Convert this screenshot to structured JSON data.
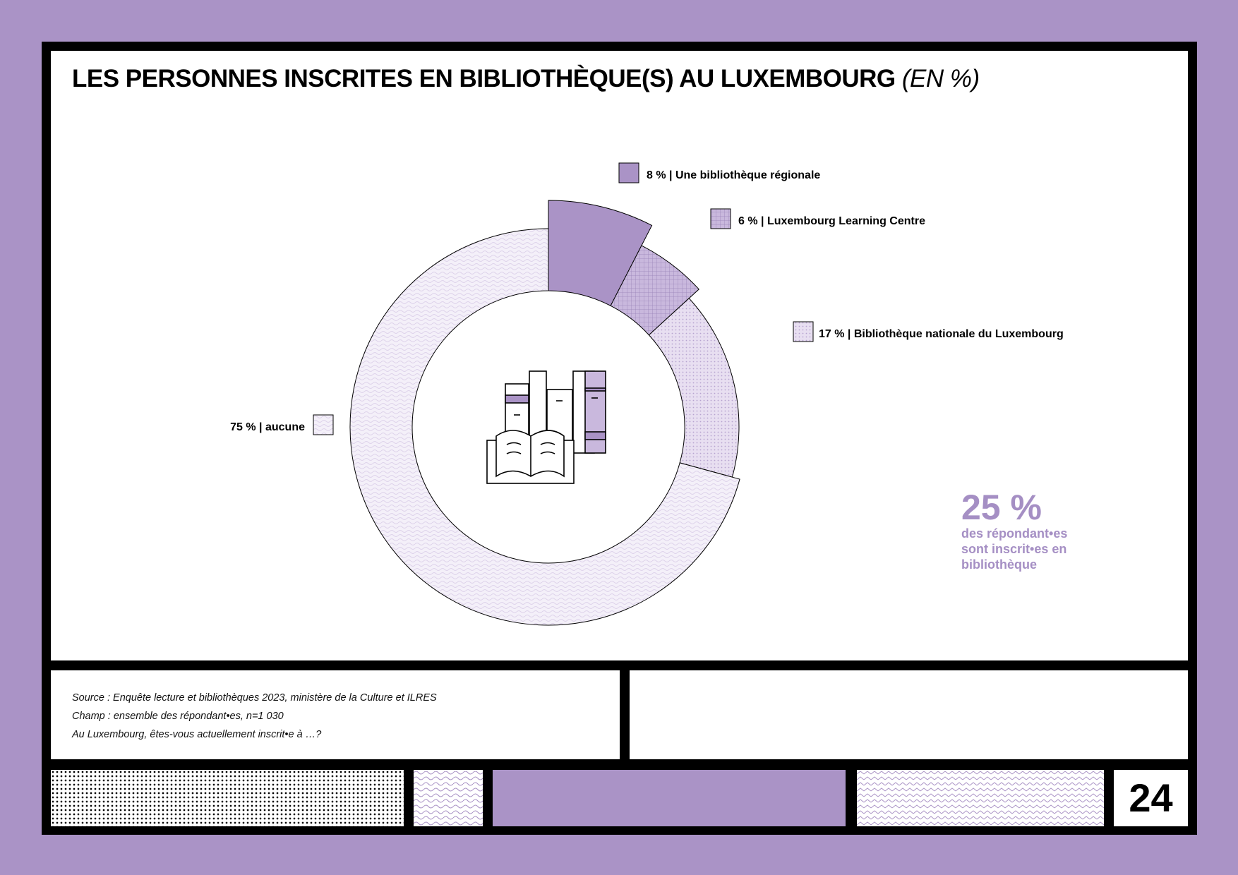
{
  "header": {
    "title": "LES PERSONNES INSCRITES EN BIBLIOTHÈQUE(S) AU LUXEMBOURG",
    "unit": "(EN %)"
  },
  "chart_data": {
    "type": "pie",
    "donut": true,
    "slices": [
      {
        "label": "8 % | Une bibliothèque régionale",
        "value": 8,
        "fill": "solid",
        "color": "#aa93c6"
      },
      {
        "label": "6 % | Luxembourg Learning Centre",
        "value": 6,
        "fill": "grid",
        "color": "#c9b8dd"
      },
      {
        "label": "17 % | Bibliothèque nationale du Luxembourg",
        "value": 17,
        "fill": "dots",
        "color": "#e8dff1"
      },
      {
        "label": "75 % | aucune",
        "value": 75,
        "fill": "waves",
        "color": "#f4f0f9"
      }
    ],
    "center_icon": "books-icon"
  },
  "callout": {
    "value": "25 %",
    "text": "des répondant•es sont inscrit•es en bibliothèque",
    "color": "#a58fc4"
  },
  "notes": {
    "source": "Source : Enquête lecture et bibliothèques 2023, ministère de la Culture et ILRES",
    "scope": "Champ : ensemble des répondant•es, n=1 030",
    "question": "Au Luxembourg, êtes-vous actuellement inscrit•e à …?"
  },
  "footer": {
    "page_number": "24"
  },
  "colors": {
    "background": "#aa93c6",
    "accent": "#aa93c6",
    "frame": "#000000"
  }
}
